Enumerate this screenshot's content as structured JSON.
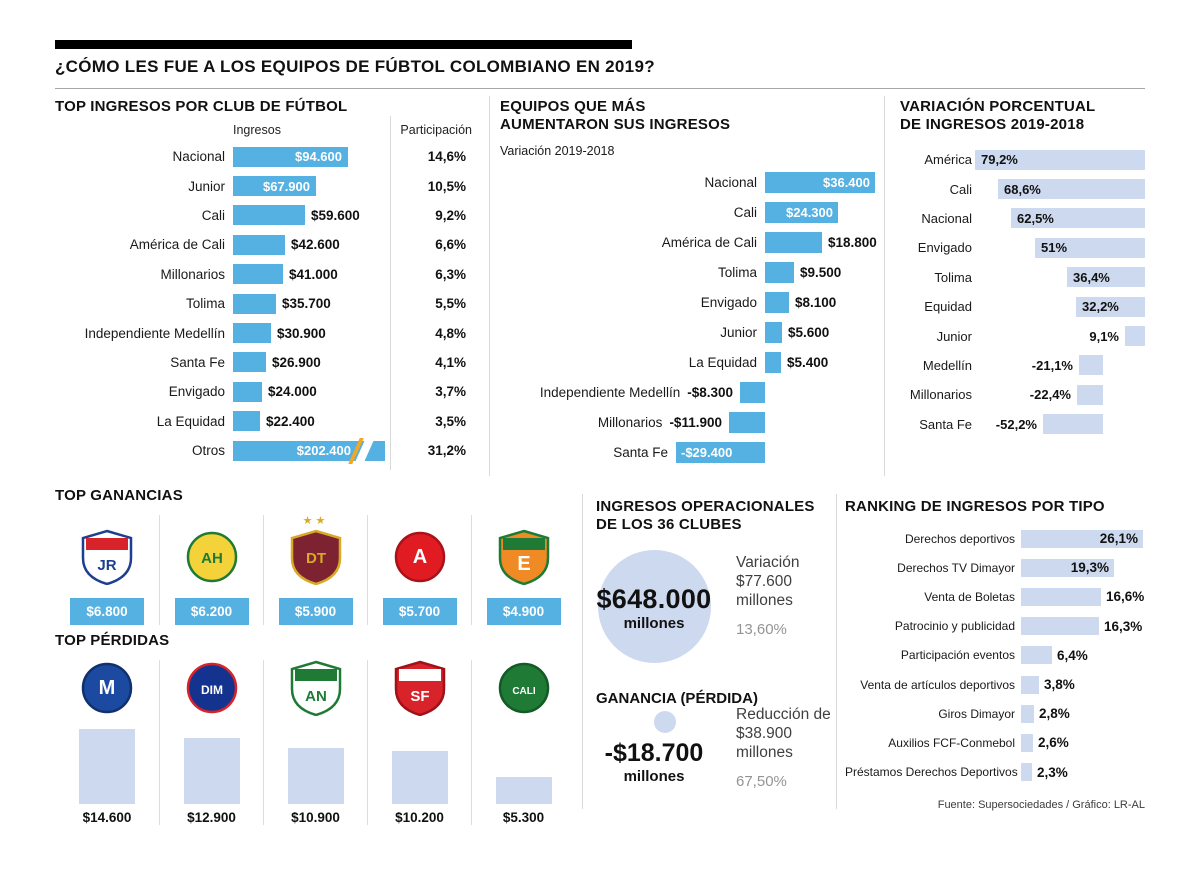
{
  "header": {
    "title": "¿CÓMO LES FUE A LOS EQUIPOS DE FÚBTOL COLOMBIANO EN 2019?"
  },
  "footer": {
    "source": "Fuente: Supersociedades / Gráfico: LR-AL"
  },
  "colors": {
    "bar_blue": "#54b1e1",
    "bar_lavender": "#cdd9ee",
    "break_orange": "#f5a623"
  },
  "chart_data": [
    {
      "id": "top_ingresos",
      "type": "bar",
      "orientation": "horizontal",
      "title": "TOP INGRESOS POR CLUB DE FÚTBOL",
      "columns": {
        "ingresos": "Ingresos",
        "participacion": "Participación"
      },
      "rows": [
        {
          "club": "Nacional",
          "value": 94600,
          "label": "$94.600",
          "share": "14,6%"
        },
        {
          "club": "Junior",
          "value": 67900,
          "label": "$67.900",
          "share": "10,5%"
        },
        {
          "club": "Cali",
          "value": 59600,
          "label": "$59.600",
          "share": "9,2%"
        },
        {
          "club": "América de Cali",
          "value": 42600,
          "label": "$42.600",
          "share": "6,6%"
        },
        {
          "club": "Millonarios",
          "value": 41000,
          "label": "$41.000",
          "share": "6,3%"
        },
        {
          "club": "Tolima",
          "value": 35700,
          "label": "$35.700",
          "share": "5,5%"
        },
        {
          "club": "Independiente Medellín",
          "value": 30900,
          "label": "$30.900",
          "share": "4,8%"
        },
        {
          "club": "Santa Fe",
          "value": 26900,
          "label": "$26.900",
          "share": "4,1%"
        },
        {
          "club": "Envigado",
          "value": 24000,
          "label": "$24.000",
          "share": "3,7%"
        },
        {
          "club": "La Equidad",
          "value": 22400,
          "label": "$22.400",
          "share": "3,5%"
        },
        {
          "club": "Otros",
          "value": 202400,
          "label": "$202.400",
          "share": "31,2%",
          "truncated": true
        }
      ]
    },
    {
      "id": "aumento_ingresos",
      "type": "bar",
      "orientation": "horizontal",
      "title_lines": [
        "EQUIPOS QUE MÁS",
        "AUMENTARON SUS INGRESOS"
      ],
      "subtitle": "Variación 2019-2018",
      "rows": [
        {
          "club": "Nacional",
          "value": 36400,
          "label": "$36.400"
        },
        {
          "club": "Cali",
          "value": 24300,
          "label": "$24.300"
        },
        {
          "club": "América de Cali",
          "value": 18800,
          "label": "$18.800"
        },
        {
          "club": "Tolima",
          "value": 9500,
          "label": "$9.500"
        },
        {
          "club": "Envigado",
          "value": 8100,
          "label": "$8.100"
        },
        {
          "club": "Junior",
          "value": 5600,
          "label": "$5.600"
        },
        {
          "club": "La Equidad",
          "value": 5400,
          "label": "$5.400"
        },
        {
          "club": "Independiente Medellín",
          "value": -8300,
          "label": "-$8.300"
        },
        {
          "club": "Millonarios",
          "value": -11900,
          "label": "-$11.900"
        },
        {
          "club": "Santa Fe",
          "value": -29400,
          "label": "-$29.400"
        }
      ]
    },
    {
      "id": "variacion_porcentual",
      "type": "bar",
      "orientation": "horizontal",
      "title_lines": [
        "VARIACIÓN PORCENTUAL",
        "DE INGRESOS 2019-2018"
      ],
      "rows": [
        {
          "club": "América",
          "value": 79.2,
          "label": "79,2%"
        },
        {
          "club": "Cali",
          "value": 68.6,
          "label": "68,6%"
        },
        {
          "club": "Nacional",
          "value": 62.5,
          "label": "62,5%"
        },
        {
          "club": "Envigado",
          "value": 51,
          "label": "51%"
        },
        {
          "club": "Tolima",
          "value": 36.4,
          "label": "36,4%"
        },
        {
          "club": "Equidad",
          "value": 32.2,
          "label": "32,2%"
        },
        {
          "club": "Junior",
          "value": 9.1,
          "label": "9,1%"
        },
        {
          "club": "Medellín",
          "value": -21.1,
          "label": "-21,1%"
        },
        {
          "club": "Millonarios",
          "value": -22.4,
          "label": "-22,4%"
        },
        {
          "club": "Santa Fe",
          "value": -52.2,
          "label": "-52,2%"
        }
      ]
    },
    {
      "id": "top_ganancias",
      "type": "bar",
      "title": "TOP GANANCIAS",
      "rows": [
        {
          "team": "Junior",
          "value": 6800,
          "label": "$6.800",
          "icon": "junior-crest-icon",
          "crest": {
            "shape": "shield",
            "bg": "#ffffff",
            "border": "#1d3f8f",
            "band": "#d8232a",
            "fg": "#1d3f8f",
            "initials": "JR"
          }
        },
        {
          "team": "Atlético Huila",
          "value": 6200,
          "label": "$6.200",
          "icon": "atletico-huila-crest-icon",
          "crest": {
            "shape": "circle",
            "bg": "#f3d23a",
            "border": "#1e7a34",
            "fg": "#1e7a34",
            "initials": "AH"
          }
        },
        {
          "team": "Deportes Tolima",
          "value": 5900,
          "label": "$5.900",
          "icon": "deportes-tolima-crest-icon",
          "crest": {
            "shape": "shield",
            "bg": "#7d2231",
            "border": "#d9a928",
            "fg": "#d9a928",
            "initials": "DT",
            "stars": "★★"
          }
        },
        {
          "team": "América de Cali",
          "value": 5700,
          "label": "$5.700",
          "icon": "america-de-cali-crest-icon",
          "crest": {
            "shape": "circle",
            "bg": "#e01b22",
            "border": "#a91218",
            "fg": "#ffffff",
            "initials": "A"
          }
        },
        {
          "team": "Envigado F.C.",
          "value": 4900,
          "label": "$4.900",
          "icon": "envigado-crest-icon",
          "crest": {
            "shape": "shield",
            "bg": "#f08a24",
            "border": "#1e7a34",
            "band": "#1e7a34",
            "fg": "#ffffff",
            "initials": "E"
          }
        }
      ]
    },
    {
      "id": "top_perdidas",
      "type": "bar",
      "title": "TOP PÉRDIDAS",
      "rows": [
        {
          "team": "Millonarios",
          "value": 14600,
          "label": "$14.600",
          "icon": "millonarios-crest-icon",
          "crest": {
            "shape": "circle",
            "bg": "#1b4aa0",
            "border": "#10306e",
            "fg": "#ffffff",
            "initials": "M"
          }
        },
        {
          "team": "Independiente Medellín",
          "value": 12900,
          "label": "$12.900",
          "icon": "independiente-medellin-crest-icon",
          "crest": {
            "shape": "circle",
            "bg": "#14338f",
            "border": "#d8232a",
            "fg": "#ffffff",
            "initials": "DIM"
          }
        },
        {
          "team": "Atlético Nacional",
          "value": 10900,
          "label": "$10.900",
          "icon": "atletico-nacional-crest-icon",
          "crest": {
            "shape": "shield",
            "bg": "#ffffff",
            "border": "#1e7a34",
            "band": "#1e7a34",
            "fg": "#1e7a34",
            "initials": "AN"
          }
        },
        {
          "team": "Santa Fe",
          "value": 10200,
          "label": "$10.200",
          "icon": "santa-fe-crest-icon",
          "crest": {
            "shape": "shield",
            "bg": "#d8232a",
            "border": "#a01118",
            "band": "#ffffff",
            "fg": "#ffffff",
            "initials": "SF"
          }
        },
        {
          "team": "Deportivo Cali",
          "value": 5300,
          "label": "$5.300",
          "icon": "deportivo-cali-crest-icon",
          "crest": {
            "shape": "circle",
            "bg": "#1e7a34",
            "border": "#145a26",
            "fg": "#ffffff",
            "initials": "CALI"
          }
        }
      ]
    },
    {
      "id": "ranking_ingresos_por_tipo",
      "type": "bar",
      "orientation": "horizontal",
      "title": "RANKING DE INGRESOS POR TIPO",
      "rows": [
        {
          "tipo": "Derechos deportivos",
          "value": 26.1,
          "label": "26,1%"
        },
        {
          "tipo": "Derechos TV Dimayor",
          "value": 19.3,
          "label": "19,3%"
        },
        {
          "tipo": "Venta de Boletas",
          "value": 16.6,
          "label": "16,6%"
        },
        {
          "tipo": "Patrocinio y publicidad",
          "value": 16.3,
          "label": "16,3%"
        },
        {
          "tipo": "Participación eventos",
          "value": 6.4,
          "label": "6,4%"
        },
        {
          "tipo": "Venta de artículos deportivos",
          "value": 3.8,
          "label": "3,8%"
        },
        {
          "tipo": "Giros Dimayor",
          "value": 2.8,
          "label": "2,8%"
        },
        {
          "tipo": "Auxilios FCF-Conmebol",
          "value": 2.6,
          "label": "2,6%"
        },
        {
          "tipo": "Préstamos Derechos Deportivos",
          "value": 2.3,
          "label": "2,3%"
        }
      ]
    }
  ],
  "stats": {
    "ingresos_title_line1": "INGRESOS OPERACIONALES",
    "ingresos_title_line2": "DE LOS 36 CLUBES",
    "total_value": "$648.000",
    "total_unit": "millones",
    "variacion_line1": "Variación",
    "variacion_line2": "$77.600",
    "variacion_line3": "millones",
    "variacion_pct": "13,60%",
    "ganancia_title": "GANANCIA (PÉRDIDA)",
    "ganancia_value": "-$18.700",
    "ganancia_unit": "millones",
    "reduccion_line1": "Reducción de",
    "reduccion_line2": "$38.900",
    "reduccion_line3": "millones",
    "reduccion_pct": "67,50%"
  }
}
